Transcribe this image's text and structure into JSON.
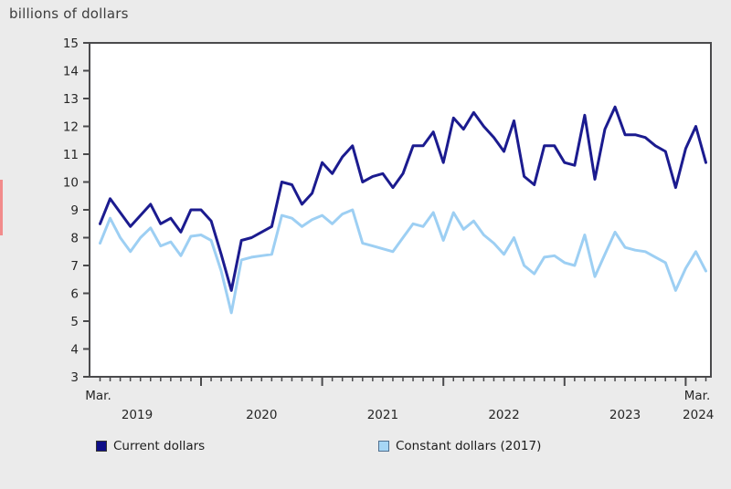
{
  "title": "billions of dollars",
  "colors": {
    "canvas_bg": "#ebebeb",
    "plot_bg": "#ffffff",
    "frame": "#4a4a4c",
    "axis_text": "#262626",
    "title_text": "#3d3d3d",
    "current_dollars_line": "#1b1b8f",
    "constant_dollars_line": "#9dcff3",
    "legend_navy_fill": "#0d0d87",
    "legend_navy_border": "#333333",
    "legend_blue_fill": "#a6d6f5",
    "legend_blue_border": "#4f6f8f",
    "red_strip": "#f28b8b"
  },
  "chart_data": {
    "type": "line",
    "title": "billions of dollars",
    "x_start": "2019-03",
    "x_end": "2024-03",
    "x_first_tick_label": "Mar.",
    "x_last_tick_label": "Mar.",
    "year_labels": [
      "2019",
      "2020",
      "2021",
      "2022",
      "2023",
      "2024"
    ],
    "ylabel": "",
    "ylim": [
      3,
      15
    ],
    "y_tick_step": 1,
    "grid": "off",
    "legend_position": "bottom",
    "months": [
      "2019-03",
      "2019-04",
      "2019-05",
      "2019-06",
      "2019-07",
      "2019-08",
      "2019-09",
      "2019-10",
      "2019-11",
      "2019-12",
      "2020-01",
      "2020-02",
      "2020-03",
      "2020-04",
      "2020-05",
      "2020-06",
      "2020-07",
      "2020-08",
      "2020-09",
      "2020-10",
      "2020-11",
      "2020-12",
      "2021-01",
      "2021-02",
      "2021-03",
      "2021-04",
      "2021-05",
      "2021-06",
      "2021-07",
      "2021-08",
      "2021-09",
      "2021-10",
      "2021-11",
      "2021-12",
      "2022-01",
      "2022-02",
      "2022-03",
      "2022-04",
      "2022-05",
      "2022-06",
      "2022-07",
      "2022-08",
      "2022-09",
      "2022-10",
      "2022-11",
      "2022-12",
      "2023-01",
      "2023-02",
      "2023-03",
      "2023-04",
      "2023-05",
      "2023-06",
      "2023-07",
      "2023-08",
      "2023-09",
      "2023-10",
      "2023-11",
      "2023-12",
      "2024-01",
      "2024-02",
      "2024-03"
    ],
    "series": [
      {
        "name": "Current dollars",
        "color": "#1b1b8f",
        "values": [
          8.5,
          9.4,
          8.9,
          8.4,
          8.8,
          9.2,
          8.5,
          8.7,
          8.2,
          9.0,
          9.0,
          8.6,
          7.4,
          6.1,
          7.9,
          8.0,
          8.2,
          8.4,
          10.0,
          9.9,
          9.2,
          9.6,
          10.7,
          10.3,
          10.9,
          11.3,
          10.0,
          10.2,
          10.3,
          9.8,
          10.3,
          11.3,
          11.3,
          11.8,
          10.7,
          12.3,
          11.9,
          12.5,
          12.0,
          11.6,
          11.1,
          12.2,
          10.2,
          9.9,
          11.3,
          11.3,
          10.7,
          10.6,
          12.4,
          10.1,
          11.9,
          12.7,
          11.7,
          11.7,
          11.6,
          11.3,
          11.1,
          9.8,
          11.2,
          12.0,
          10.7
        ]
      },
      {
        "name": "Constant dollars (2017)",
        "color": "#9dcff3",
        "values": [
          7.8,
          8.7,
          8.0,
          7.5,
          8.0,
          8.35,
          7.7,
          7.85,
          7.35,
          8.05,
          8.1,
          7.9,
          6.8,
          5.3,
          7.2,
          7.3,
          7.35,
          7.4,
          8.8,
          8.7,
          8.4,
          8.65,
          8.8,
          8.5,
          8.85,
          9.0,
          7.8,
          7.7,
          7.6,
          7.5,
          8.0,
          8.5,
          8.4,
          8.9,
          7.9,
          8.9,
          8.3,
          8.6,
          8.1,
          7.8,
          7.4,
          8.0,
          7.0,
          6.7,
          7.3,
          7.35,
          7.1,
          7.0,
          8.1,
          6.6,
          7.4,
          8.2,
          7.65,
          7.55,
          7.5,
          7.3,
          7.1,
          6.1,
          6.9,
          7.5,
          6.8
        ]
      }
    ]
  },
  "legend": {
    "items": [
      {
        "label": "Current dollars"
      },
      {
        "label": "Constant dollars (2017)"
      }
    ]
  }
}
